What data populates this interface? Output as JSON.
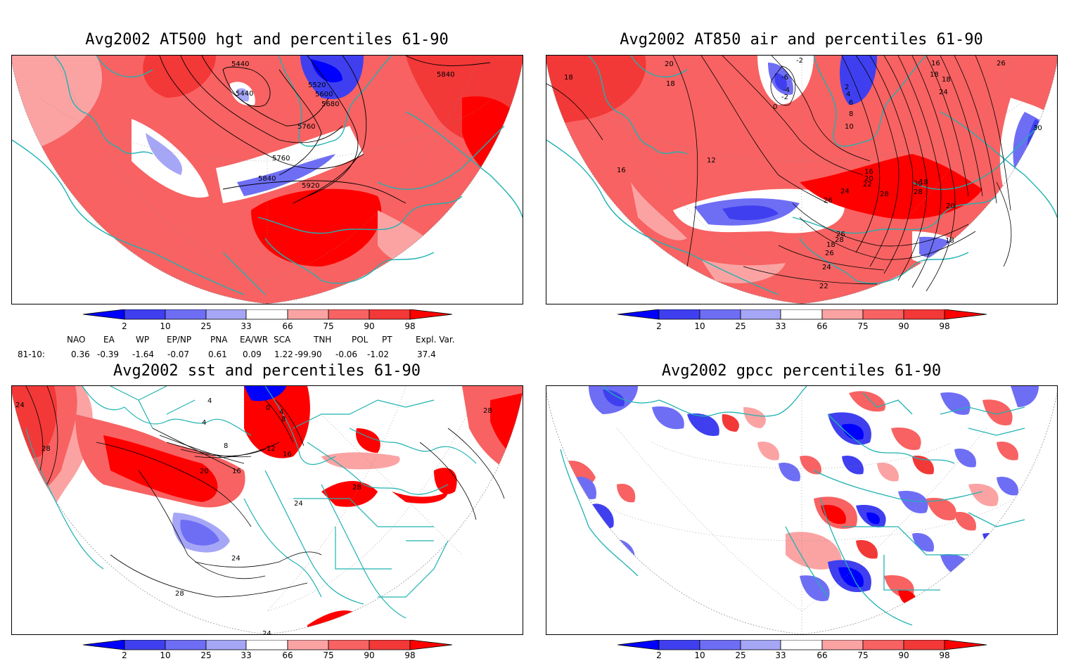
{
  "panels": [
    {
      "title": "Avg2002 AT500 hgt and percentiles 61-90",
      "contour_labels": [
        "5440",
        "5440",
        "5520",
        "5600",
        "5680",
        "5760",
        "5760",
        "5840",
        "5920",
        "5840"
      ]
    },
    {
      "title": "Avg2002 AT850 air and percentiles 61-90",
      "contour_labels": [
        "-2",
        "20",
        "18",
        "-6",
        "-4",
        "-2",
        "0",
        "2",
        "4",
        "6",
        "8",
        "10",
        "12",
        "16",
        "18",
        "16",
        "20",
        "22",
        "24",
        "26",
        "28",
        "30",
        "28",
        "26",
        "28",
        "18",
        "26",
        "24",
        "22",
        "20",
        "18",
        "16",
        "18",
        "18",
        "24",
        "26",
        "30",
        "18"
      ]
    },
    {
      "title": "Avg2002 sst and percentiles 61-90",
      "contour_labels": [
        "24",
        "28",
        "4",
        "0",
        "4",
        "8",
        "8",
        "4",
        "12",
        "16",
        "20",
        "16",
        "24",
        "28",
        "24",
        "28",
        "24",
        "28"
      ]
    },
    {
      "title": "Avg2002 gpcc percentiles 61-90",
      "contour_labels": []
    }
  ],
  "colorbar": {
    "labels": [
      "2",
      "10",
      "25",
      "33",
      "66",
      "75",
      "90",
      "98"
    ],
    "colors": {
      "below_2": "#0000ff",
      "2_10": "#3f3ff0",
      "10_25": "#6e6ef5",
      "25_33": "#a6a6f7",
      "neutral": "#ffffff",
      "66_75": "#fba3a3",
      "75_90": "#f86262",
      "90_98": "#f33838",
      "above_98": "#ff0000"
    }
  },
  "indices": {
    "headers": [
      "NAO",
      "EA",
      "WP",
      "EP/NP",
      "PNA",
      "EA/WR",
      "SCA",
      "TNH",
      "POL",
      "PT",
      "Expl. Var."
    ],
    "row_label": "81-10:",
    "values": [
      "0.36",
      "-0.39",
      "-1.64",
      "-0.07",
      "0.61",
      "0.09",
      "1.22",
      "-99.90",
      "-0.06",
      "-1.02",
      "37.4"
    ]
  },
  "colors": {
    "coast": "#20b2b2",
    "contour": "#000000",
    "grid": "#888888"
  }
}
